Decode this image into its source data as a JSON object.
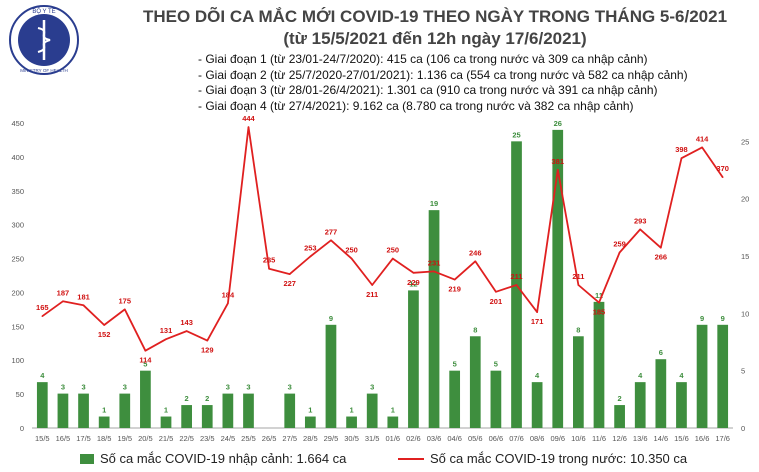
{
  "header": {
    "title_line1": "THEO DÕI CA MẮC MỚI COVID-19 THEO NGÀY TRONG THÁNG 5-6/2021",
    "title_line2": "(từ 15/5/2021 đến 12h ngày 17/6/2021)",
    "phases": [
      "- Giai đoạn 1 (từ 23/01-24/7/2020): 415 ca (106 ca trong nước và 309 ca nhập cảnh)",
      "- Giai đoạn 2 (từ 25/7/2020-27/01/2021): 1.136 ca (554 ca trong nước và 582 ca nhập cảnh)",
      "- Giai đoạn 3 (từ 28/01-26/4/2021): 1.301 ca (910 ca trong nước và 391 ca nhập cảnh)",
      "- Giai đoạn 4 (từ 27/4/2021): 9.162 ca (8.780 ca trong nước và 382 ca nhập cảnh)"
    ]
  },
  "logo": {
    "text_top": "BỘ Y TẾ",
    "text_bottom": "MINISTRY OF HEALTH"
  },
  "colors": {
    "bar": "#3e8e3e",
    "line": "#e02020",
    "axis": "#555555",
    "bar_label": "#3e8e3e",
    "line_label": "#d01010"
  },
  "chart_data": {
    "type": "bar+line",
    "categories": [
      "15/5",
      "16/5",
      "17/5",
      "18/5",
      "19/5",
      "20/5",
      "21/5",
      "22/5",
      "23/5",
      "24/5",
      "25/5",
      "26/5",
      "27/5",
      "28/5",
      "29/5",
      "30/5",
      "31/5",
      "01/6",
      "02/6",
      "03/6",
      "04/6",
      "05/6",
      "06/6",
      "07/6",
      "08/6",
      "09/6",
      "10/6",
      "11/6",
      "12/6",
      "13/6",
      "14/6",
      "15/6",
      "16/6",
      "17/6"
    ],
    "series": [
      {
        "name": "Số ca mắc COVID-19 nhập cảnh: 1.664 ca",
        "axis": "right",
        "values": [
          4,
          3,
          3,
          1,
          3,
          5,
          1,
          2,
          2,
          3,
          3,
          null,
          3,
          1,
          9,
          1,
          3,
          1,
          12,
          19,
          5,
          8,
          5,
          25,
          4,
          26,
          8,
          11,
          2,
          4,
          6,
          4,
          9,
          9
        ],
        "labels": [
          "4",
          "3",
          "3",
          "1",
          "3",
          "5",
          "1",
          "2",
          "2",
          "3",
          "3",
          "",
          "3",
          "1",
          "9",
          "1",
          "3",
          "1",
          "12",
          "19",
          "5",
          "8",
          "5",
          "25",
          "4",
          "26",
          "8",
          "11",
          "2",
          "4",
          "6",
          "4",
          "9",
          "9"
        ]
      },
      {
        "name": "Số ca mắc COVID-19 trong nước: 10.350 ca",
        "axis": "left",
        "values": [
          165,
          187,
          181,
          152,
          175,
          114,
          131,
          143,
          129,
          184,
          444,
          235,
          227,
          253,
          277,
          250,
          211,
          250,
          229,
          231,
          219,
          246,
          201,
          211,
          171,
          381,
          211,
          185,
          259,
          293,
          266,
          398,
          414,
          370
        ],
        "labels": [
          "165",
          "187",
          "181",
          "152",
          "175",
          "114",
          "131",
          "143",
          "129",
          "184",
          "444",
          "235",
          "227",
          "253",
          "277",
          "250",
          "211",
          "250",
          "229",
          "231",
          "219",
          "246",
          "201",
          "211",
          "171",
          "381",
          "211",
          "185",
          "259",
          "293",
          "266",
          "398",
          "414",
          "370"
        ]
      }
    ],
    "left_axis": {
      "ylim": [
        0,
        450
      ],
      "ticks": [
        "0",
        "50",
        "100",
        "150",
        "200",
        "250",
        "300",
        "350",
        "400",
        "450"
      ]
    },
    "right_axis": {
      "ylim": [
        0,
        26.6
      ],
      "ticks": [
        "0",
        "5",
        "10",
        "15",
        "20",
        "25"
      ]
    },
    "legend": {
      "bar_label": "Số ca mắc COVID-19 nhập cảnh: 1.664 ca",
      "line_label": "Số ca mắc COVID-19 trong nước: 10.350 ca",
      "placement": "bottom"
    }
  }
}
